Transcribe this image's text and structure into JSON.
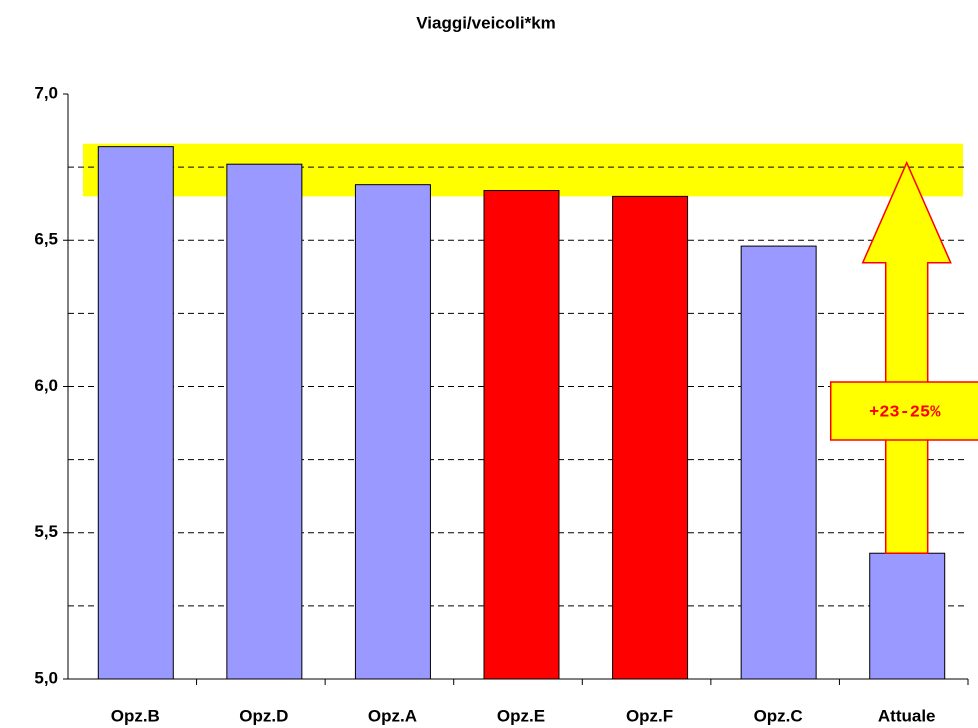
{
  "chart_data": {
    "type": "bar",
    "title": "Viaggi/veicoli*km",
    "categories": [
      "Opz.B",
      "Opz.D",
      "Opz.A",
      "Opz.E",
      "Opz.F",
      "Opz.C",
      "Attuale"
    ],
    "values": [
      6.82,
      6.76,
      6.69,
      6.67,
      6.65,
      6.48,
      5.43
    ],
    "colors": [
      "#9999ff",
      "#9999ff",
      "#9999ff",
      "#ff0000",
      "#ff0000",
      "#9999ff",
      "#9999ff"
    ],
    "ylim": [
      5,
      7
    ],
    "yticks": [
      {
        "value": 5,
        "label": "5,0"
      },
      {
        "value": 5.5,
        "label": "5,5"
      },
      {
        "value": 6,
        "label": "6,0"
      },
      {
        "value": 6.5,
        "label": "6,5"
      },
      {
        "value": 7,
        "label": "7,0"
      }
    ],
    "minor_grid": [
      5.25,
      5.75,
      6.25,
      6.75
    ],
    "grid": true,
    "highlight_band": [
      6.65,
      6.83
    ],
    "highlight_color": "#ffff00",
    "annotation": "+23-25%"
  }
}
